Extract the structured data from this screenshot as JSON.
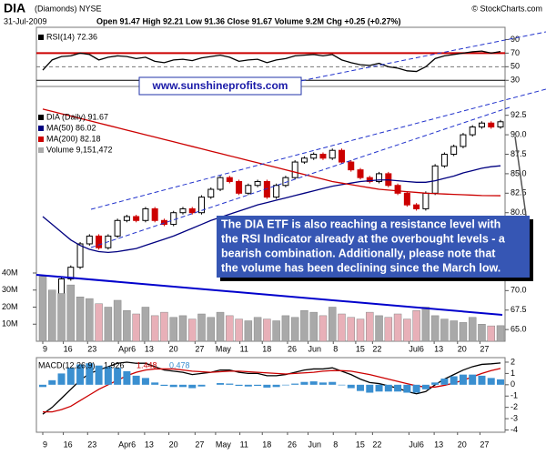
{
  "header": {
    "symbol": "DIA",
    "name": "(Diamonds) NYSE",
    "date": "31-Jul-2009",
    "quote": "Open 91.47  High 92.21  Low 91.36  Close 91.67  Volume 9.2M  Chg +0.25 (+0.27%)",
    "copyright": "© StockCharts.com",
    "website": "www.sunshineprofits.com",
    "note": [
      "The DIA ETF is also reaching a resistance level with",
      "the RSI Indicator already at the overbought levels - a",
      "bearish combination. Additionally, please note that",
      "the volume has been declining since the March low."
    ]
  },
  "chart_data": [
    {
      "type": "line",
      "xlim": [
        0,
        49
      ],
      "ylim": [
        21,
        108
      ],
      "yticks": [
        90,
        70,
        50,
        30
      ],
      "levels": [
        {
          "value": 70,
          "color": "#cc0000"
        },
        {
          "value": 50,
          "color": "#777777"
        },
        {
          "value": 30,
          "color": "#000000"
        }
      ],
      "series": [
        {
          "name": "RSI(14) 72.36",
          "color": "#000000",
          "values": [
            45,
            60,
            65,
            66,
            70,
            68,
            60,
            64,
            66,
            65,
            62,
            64,
            58,
            56,
            60,
            61,
            59,
            63,
            65,
            67,
            64,
            58,
            60,
            61,
            56,
            60,
            62,
            66,
            67,
            68,
            66,
            68,
            60,
            56,
            53,
            52,
            55,
            50,
            48,
            44,
            43,
            50,
            62,
            66,
            68,
            70,
            72,
            73,
            70,
            72.36
          ]
        }
      ]
    },
    {
      "type": "candlestick",
      "xlim": [
        0,
        49
      ],
      "ylim": [
        63.5,
        96.2
      ],
      "yticks": [
        92.5,
        {
          "value": 90,
          "label": "90.0"
        },
        87.5,
        {
          "value": 85,
          "label": "85.0"
        },
        82.5,
        {
          "value": 80,
          "label": "80.0"
        },
        {
          "value": 70,
          "label": "70.0"
        },
        67.5,
        {
          "value": 65,
          "label": "65.0"
        }
      ],
      "xticks": [
        {
          "value": 0,
          "label": "9"
        },
        {
          "value": 2.2,
          "label": "16"
        },
        {
          "value": 4.8,
          "label": "23"
        },
        {
          "value": 8.1,
          "label": "Apr6"
        },
        {
          "value": 10.9,
          "label": "13"
        },
        {
          "value": 13.5,
          "label": "20"
        },
        {
          "value": 16.3,
          "label": "27"
        },
        {
          "value": 18.5,
          "label": "May"
        },
        {
          "value": 21.1,
          "label": "11"
        },
        {
          "value": 23.5,
          "label": "18"
        },
        {
          "value": 26.2,
          "label": "26"
        },
        {
          "value": 28.4,
          "label": "Jun"
        },
        {
          "value": 31.1,
          "label": "8"
        },
        {
          "value": 33.5,
          "label": "15"
        },
        {
          "value": 35.3,
          "label": "22"
        },
        {
          "value": 39.2,
          "label": "Jul6"
        },
        {
          "value": 41.9,
          "label": "13"
        },
        {
          "value": 44.4,
          "label": "20"
        },
        {
          "value": 46.8,
          "label": "27"
        }
      ],
      "series": [
        {
          "name": "DIA (Daily) 91.67",
          "color": "#000000",
          "down_color": "#cc0000",
          "values": [
            66.0,
            69.5,
            71.5,
            73.0,
            76.0,
            77.0,
            75.5,
            77.0,
            79.0,
            79.5,
            79.0,
            80.5,
            79.0,
            78.5,
            80.0,
            80.5,
            80.0,
            82.0,
            83.0,
            84.5,
            84.0,
            82.5,
            83.5,
            84.0,
            82.0,
            83.5,
            84.5,
            86.5,
            87.0,
            87.5,
            87.0,
            88.0,
            86.5,
            85.5,
            84.5,
            84.0,
            85.0,
            83.5,
            82.5,
            81.0,
            80.5,
            82.5,
            86.0,
            87.5,
            88.5,
            90.0,
            91.0,
            91.5,
            91.0,
            91.67
          ]
        },
        {
          "name": "MA(50) 86.02",
          "color": "#000080",
          "values": [
            79.5,
            78.5,
            77.5,
            76.5,
            75.8,
            75.3,
            75.0,
            74.9,
            75.0,
            75.2,
            75.4,
            75.8,
            76.2,
            76.6,
            77.0,
            77.5,
            78.0,
            78.5,
            79.0,
            79.4,
            79.8,
            80.2,
            80.6,
            81.0,
            81.3,
            81.6,
            81.9,
            82.2,
            82.5,
            82.8,
            83.1,
            83.4,
            83.6,
            83.8,
            84.0,
            84.1,
            84.2,
            84.2,
            84.1,
            84.0,
            83.9,
            83.9,
            84.1,
            84.4,
            84.7,
            85.1,
            85.4,
            85.7,
            85.9,
            86.02
          ]
        },
        {
          "name": "MA(200) 82.18",
          "color": "#cc0000",
          "values": [
            93.3,
            93.0,
            92.7,
            92.4,
            92.1,
            91.8,
            91.5,
            91.2,
            90.9,
            90.6,
            90.3,
            90.0,
            89.7,
            89.4,
            89.1,
            88.8,
            88.5,
            88.2,
            87.9,
            87.6,
            87.3,
            87.0,
            86.7,
            86.4,
            86.1,
            85.8,
            85.5,
            85.2,
            84.9,
            84.6,
            84.3,
            84.0,
            83.8,
            83.6,
            83.4,
            83.2,
            83.0,
            82.9,
            82.8,
            82.7,
            82.6,
            82.5,
            82.45,
            82.4,
            82.35,
            82.3,
            82.25,
            82.2,
            82.19,
            82.18
          ]
        }
      ]
    },
    {
      "type": "bar",
      "xlim": [
        0,
        49
      ],
      "ylim": [
        0,
        40000000
      ],
      "yticks": [
        {
          "value": 40000000,
          "label": "40M"
        },
        {
          "value": 30000000,
          "label": "30M"
        },
        {
          "value": 20000000,
          "label": "20M"
        },
        {
          "value": 10000000,
          "label": "10M"
        }
      ],
      "series": [
        {
          "name": "Volume 9,151,472",
          "color": "#a9a9a9",
          "down_color": "#e8b0b8",
          "values": [
            38000000,
            30000000,
            28000000,
            33000000,
            26000000,
            25000000,
            22000000,
            20000000,
            24000000,
            18000000,
            16000000,
            20000000,
            15000000,
            17000000,
            14000000,
            15000000,
            13000000,
            16000000,
            14000000,
            17000000,
            15000000,
            13000000,
            12000000,
            14000000,
            13000000,
            12000000,
            15000000,
            14000000,
            18000000,
            17000000,
            15000000,
            20000000,
            16000000,
            14000000,
            13000000,
            17000000,
            15000000,
            14000000,
            16000000,
            13000000,
            18000000,
            20000000,
            15000000,
            13000000,
            12000000,
            11000000,
            14000000,
            10000000,
            9000000,
            9151472
          ]
        }
      ]
    },
    {
      "type": "line",
      "title": "MACD(12,26,9)",
      "xlim": [
        0,
        49
      ],
      "ylim": [
        -4.2,
        2.4
      ],
      "yticks": [
        2,
        1,
        0,
        -1,
        -2,
        -3,
        -4
      ],
      "xticks": [
        {
          "value": 0,
          "label": "9"
        },
        {
          "value": 2.2,
          "label": "16"
        },
        {
          "value": 4.8,
          "label": "23"
        },
        {
          "value": 8.1,
          "label": "Apr6"
        },
        {
          "value": 10.9,
          "label": "13"
        },
        {
          "value": 13.5,
          "label": "20"
        },
        {
          "value": 16.3,
          "label": "27"
        },
        {
          "value": 18.5,
          "label": "May"
        },
        {
          "value": 21.1,
          "label": "11"
        },
        {
          "value": 23.5,
          "label": "18"
        },
        {
          "value": 26.2,
          "label": "26"
        },
        {
          "value": 28.4,
          "label": "Jun"
        },
        {
          "value": 31.1,
          "label": "8"
        },
        {
          "value": 33.5,
          "label": "15"
        },
        {
          "value": 35.3,
          "label": "22"
        },
        {
          "value": 39.2,
          "label": "Jul6"
        },
        {
          "value": 41.9,
          "label": "13"
        },
        {
          "value": 44.4,
          "label": "20"
        },
        {
          "value": 46.8,
          "label": "27"
        }
      ],
      "series": [
        {
          "name": "1.926",
          "color": "#000000",
          "style": "line",
          "values": [
            -2.6,
            -2.0,
            -1.2,
            -0.4,
            0.4,
            1.0,
            1.3,
            1.6,
            1.9,
            2.0,
            1.9,
            1.9,
            1.6,
            1.3,
            1.2,
            1.1,
            0.9,
            1.0,
            1.1,
            1.3,
            1.3,
            1.1,
            1.0,
            1.0,
            0.8,
            0.8,
            0.9,
            1.1,
            1.3,
            1.4,
            1.4,
            1.5,
            1.2,
            0.9,
            0.5,
            0.2,
            0.1,
            -0.1,
            -0.3,
            -0.6,
            -0.8,
            -0.6,
            0.0,
            0.5,
            0.9,
            1.3,
            1.6,
            1.8,
            1.85,
            1.926
          ]
        },
        {
          "name": "1.448",
          "color": "#cc0000",
          "style": "line",
          "values": [
            -2.4,
            -2.4,
            -2.2,
            -1.9,
            -1.4,
            -0.9,
            -0.4,
            0.0,
            0.4,
            0.8,
            1.1,
            1.3,
            1.4,
            1.4,
            1.4,
            1.3,
            1.2,
            1.15,
            1.1,
            1.15,
            1.2,
            1.2,
            1.15,
            1.1,
            1.05,
            1.0,
            0.95,
            1.0,
            1.05,
            1.1,
            1.2,
            1.25,
            1.25,
            1.2,
            1.05,
            0.9,
            0.7,
            0.5,
            0.3,
            0.1,
            -0.1,
            -0.2,
            -0.2,
            -0.05,
            0.15,
            0.4,
            0.7,
            1.0,
            1.25,
            1.448
          ]
        },
        {
          "name": "0.478",
          "color": "#3a8fd0",
          "style": "bar",
          "values": [
            -0.2,
            0.4,
            1.0,
            1.5,
            1.8,
            1.9,
            1.7,
            1.6,
            1.5,
            1.2,
            0.8,
            0.6,
            0.2,
            -0.1,
            -0.2,
            -0.2,
            -0.3,
            -0.15,
            0.0,
            0.15,
            0.1,
            -0.1,
            -0.15,
            -0.1,
            -0.25,
            -0.2,
            -0.05,
            0.1,
            0.25,
            0.3,
            0.2,
            0.25,
            -0.05,
            -0.3,
            -0.55,
            -0.7,
            -0.6,
            -0.6,
            -0.6,
            -0.7,
            -0.7,
            -0.4,
            0.2,
            0.55,
            0.75,
            0.9,
            0.9,
            0.8,
            0.6,
            0.478
          ]
        }
      ]
    }
  ]
}
